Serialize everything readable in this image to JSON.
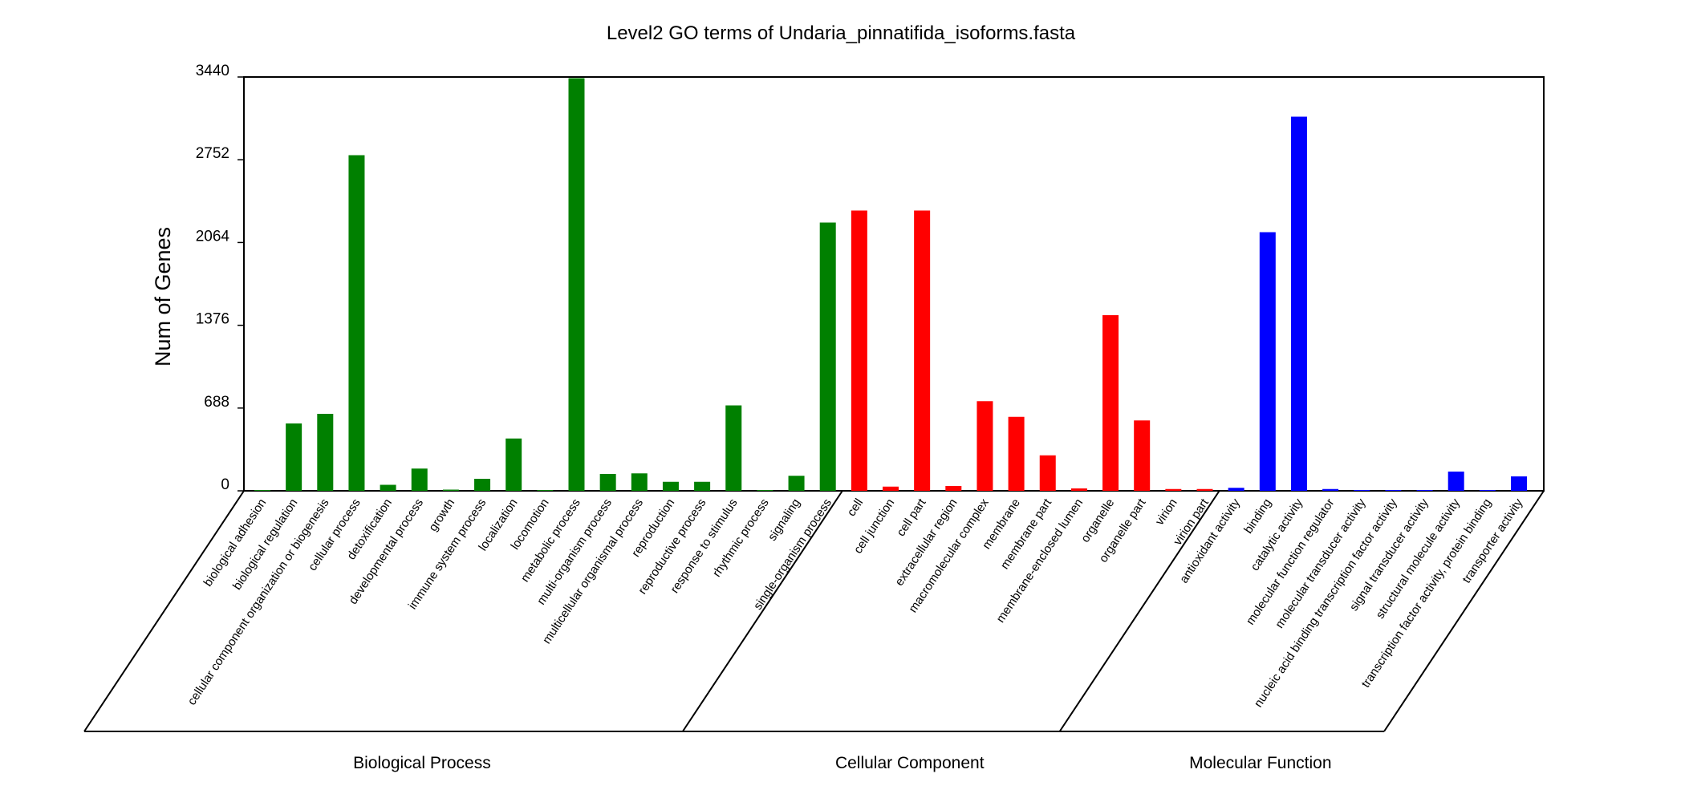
{
  "chart_data": {
    "type": "bar",
    "title": "Level2 GO terms of Undaria_pinnatifida_isoforms.fasta",
    "xlabel": "",
    "ylabel": "Num of Genes",
    "ylim": [
      0,
      3440
    ],
    "yticks": [
      0,
      688,
      1376,
      2064,
      2752,
      3440
    ],
    "grid": false,
    "legend": "none",
    "groups": [
      {
        "name": "Biological Process",
        "color": "#008000",
        "categories": [
          "biological adhesion",
          "biological regulation",
          "cellular component organization or biogenesis",
          "cellular process",
          "detoxification",
          "developmental process",
          "growth",
          "immune system process",
          "localization",
          "locomotion",
          "metabolic process",
          "multi-organism process",
          "multicellular organismal process",
          "reproduction",
          "reproductive process",
          "response to stimulus",
          "rhythmic process",
          "signaling",
          "single-organism process"
        ],
        "values": [
          3,
          560,
          640,
          2790,
          50,
          185,
          10,
          100,
          435,
          3,
          3430,
          140,
          145,
          75,
          75,
          710,
          5,
          125,
          2230
        ]
      },
      {
        "name": "Cellular Component",
        "color": "#ff0000",
        "categories": [
          "cell",
          "cell junction",
          "cell part",
          "extracellular region",
          "macromolecular complex",
          "membrane",
          "membrane part",
          "membrane-enclosed lumen",
          "organelle",
          "organelle part",
          "virion",
          "virion part"
        ],
        "values": [
          2330,
          35,
          2330,
          40,
          745,
          615,
          295,
          20,
          1460,
          585,
          15,
          15
        ]
      },
      {
        "name": "Molecular Function",
        "color": "#0000ff",
        "categories": [
          "antioxidant activity",
          "binding",
          "catalytic activity",
          "molecular function regulator",
          "molecular transducer activity",
          "nucleic acid binding transcription factor activity",
          "signal transducer activity",
          "structural molecule activity",
          "transcription factor activity, protein binding",
          "transporter activity"
        ],
        "values": [
          25,
          2150,
          3110,
          15,
          3,
          5,
          5,
          160,
          5,
          120
        ]
      }
    ]
  }
}
